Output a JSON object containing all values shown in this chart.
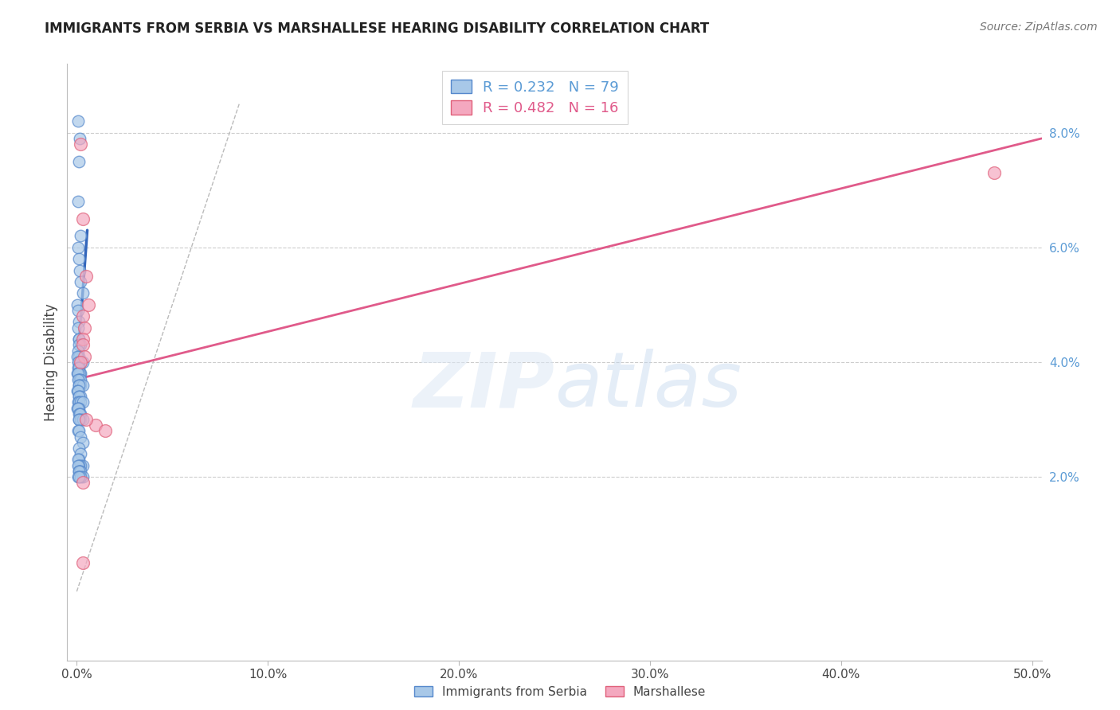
{
  "title": "IMMIGRANTS FROM SERBIA VS MARSHALLESE HEARING DISABILITY CORRELATION CHART",
  "source": "Source: ZipAtlas.com",
  "ylabel": "Hearing Disability",
  "xlim": [
    -0.005,
    0.505
  ],
  "ylim": [
    -0.012,
    0.092
  ],
  "xticks": [
    0.0,
    0.1,
    0.2,
    0.3,
    0.4,
    0.5
  ],
  "xticklabels": [
    "0.0%",
    "10.0%",
    "20.0%",
    "30.0%",
    "40.0%",
    "50.0%"
  ],
  "yticks_right": [
    0.02,
    0.04,
    0.06,
    0.08
  ],
  "yticklabels_right": [
    "2.0%",
    "4.0%",
    "6.0%",
    "8.0%"
  ],
  "grid_color": "#cccccc",
  "bg_color": "#ffffff",
  "blue_fill": "#a8c8e8",
  "blue_edge": "#5588cc",
  "pink_fill": "#f4a8bf",
  "pink_edge": "#e0607a",
  "blue_line_color": "#3366bb",
  "pink_line_color": "#e05a8a",
  "diag_color": "#bbbbbb",
  "legend_R_blue": "R = 0.232",
  "legend_N_blue": "N = 79",
  "legend_R_pink": "R = 0.482",
  "legend_N_pink": "N = 16",
  "legend_label_blue": "Immigrants from Serbia",
  "legend_label_pink": "Marshallese",
  "watermark_zip": "ZIP",
  "watermark_atlas": "atlas",
  "serbia_x": [
    0.0008,
    0.0015,
    0.001,
    0.0005,
    0.002,
    0.0005,
    0.001,
    0.0015,
    0.002,
    0.003,
    0.0003,
    0.0005,
    0.001,
    0.0008,
    0.0012,
    0.001,
    0.002,
    0.001,
    0.0005,
    0.001,
    0.0003,
    0.001,
    0.002,
    0.003,
    0.001,
    0.0005,
    0.0008,
    0.001,
    0.002,
    0.0015,
    0.0003,
    0.0005,
    0.001,
    0.0015,
    0.002,
    0.0005,
    0.001,
    0.002,
    0.003,
    0.001,
    0.0003,
    0.0005,
    0.001,
    0.002,
    0.001,
    0.0005,
    0.001,
    0.002,
    0.003,
    0.001,
    0.0003,
    0.0005,
    0.001,
    0.002,
    0.0015,
    0.001,
    0.002,
    0.003,
    0.001,
    0.0005,
    0.001,
    0.002,
    0.003,
    0.001,
    0.002,
    0.001,
    0.0005,
    0.003,
    0.002,
    0.001,
    0.0005,
    0.001,
    0.0015,
    0.002,
    0.001,
    0.0008,
    0.003,
    0.002,
    0.001
  ],
  "serbia_y": [
    0.082,
    0.079,
    0.075,
    0.068,
    0.062,
    0.06,
    0.058,
    0.056,
    0.054,
    0.052,
    0.05,
    0.049,
    0.047,
    0.046,
    0.044,
    0.044,
    0.043,
    0.043,
    0.042,
    0.041,
    0.041,
    0.04,
    0.04,
    0.04,
    0.04,
    0.04,
    0.039,
    0.039,
    0.038,
    0.038,
    0.038,
    0.038,
    0.037,
    0.037,
    0.037,
    0.037,
    0.036,
    0.036,
    0.036,
    0.036,
    0.035,
    0.035,
    0.034,
    0.034,
    0.034,
    0.033,
    0.033,
    0.033,
    0.033,
    0.032,
    0.032,
    0.032,
    0.031,
    0.031,
    0.031,
    0.03,
    0.03,
    0.03,
    0.03,
    0.028,
    0.028,
    0.027,
    0.026,
    0.025,
    0.024,
    0.023,
    0.023,
    0.022,
    0.022,
    0.022,
    0.022,
    0.021,
    0.021,
    0.021,
    0.021,
    0.02,
    0.02,
    0.02,
    0.02
  ],
  "marsh_x": [
    0.002,
    0.003,
    0.005,
    0.003,
    0.004,
    0.006,
    0.003,
    0.003,
    0.004,
    0.002,
    0.01,
    0.015,
    0.003,
    0.48,
    0.005,
    0.003
  ],
  "marsh_y": [
    0.078,
    0.065,
    0.055,
    0.048,
    0.046,
    0.05,
    0.044,
    0.043,
    0.041,
    0.04,
    0.029,
    0.028,
    0.019,
    0.073,
    0.03,
    0.005
  ],
  "blue_line_x": [
    0.0,
    0.0055
  ],
  "blue_line_y": [
    0.038,
    0.063
  ],
  "pink_line_x": [
    0.0,
    0.505
  ],
  "pink_line_y": [
    0.037,
    0.079
  ]
}
